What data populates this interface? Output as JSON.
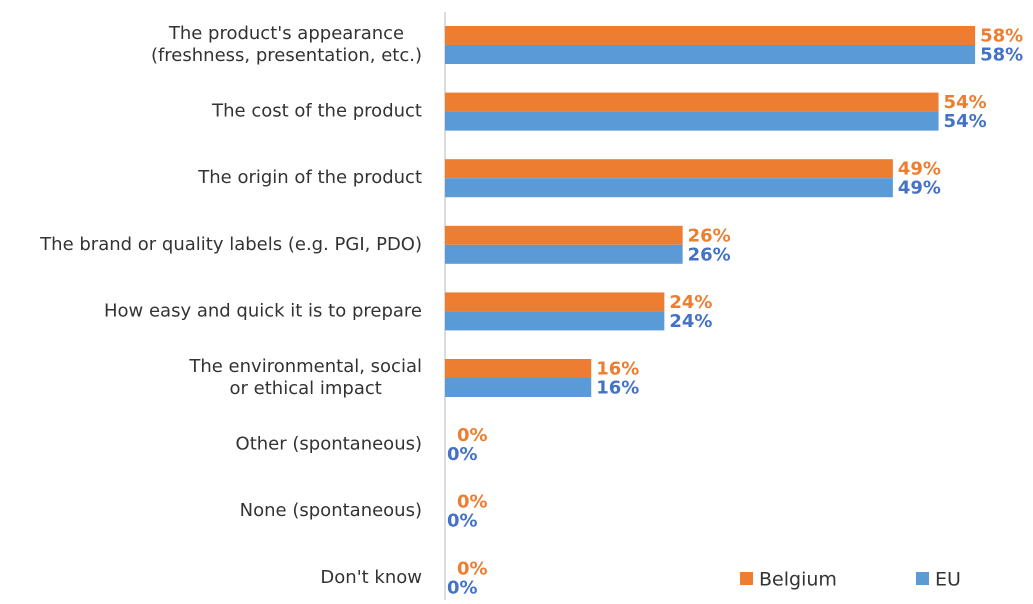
{
  "chart_data": {
    "type": "hbar",
    "categories": [
      [
        "The product's appearance",
        "(freshness, presentation, etc.)"
      ],
      "The cost of the product",
      "The origin of the product",
      "The brand or quality labels (e.g. PGI, PDO)",
      "How easy and quick it is to prepare",
      [
        "The environmental, social",
        "or ethical impact"
      ],
      "Other (spontaneous)",
      "None (spontaneous)",
      "Don't know"
    ],
    "series": [
      {
        "name": "Belgium",
        "color": "#ed7d31",
        "label_color": "#ed7d31",
        "values": [
          58,
          54,
          49,
          26,
          24,
          16,
          0,
          0,
          0
        ],
        "value_labels": [
          "58%",
          "54%",
          "49%",
          "26%",
          "24%",
          "16%",
          "0%",
          "0%",
          "0%"
        ]
      },
      {
        "name": "EU",
        "color": "#5b9bd5",
        "label_color": "#4472c4",
        "values": [
          58,
          54,
          49,
          26,
          24,
          16,
          0,
          0,
          0
        ],
        "value_labels": [
          "58%",
          "54%",
          "49%",
          "26%",
          "24%",
          "16%",
          "0%",
          "0%",
          "0%"
        ]
      }
    ],
    "legend": "bottom-right"
  }
}
